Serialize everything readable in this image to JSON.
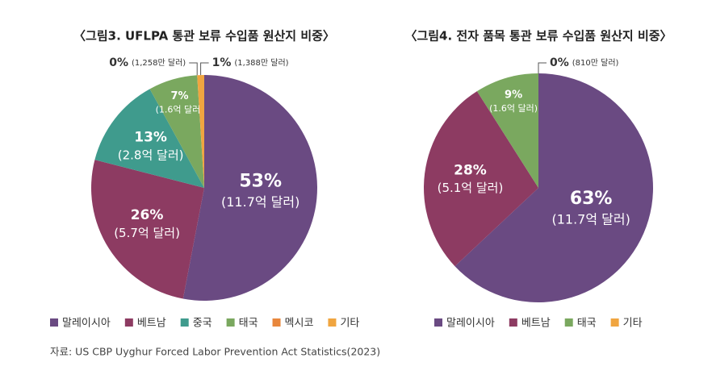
{
  "chart_data": [
    {
      "type": "pie",
      "title": "〈그림3. UFLPA 통관 보류 수입품 원산지 비중〉",
      "categories": [
        "말레이시아",
        "베트남",
        "중국",
        "태국",
        "멕시코",
        "기타"
      ],
      "values": [
        53,
        26,
        13,
        7,
        0,
        1
      ],
      "value_labels": [
        "53%",
        "26%",
        "13%",
        "7%",
        "0%",
        "1%"
      ],
      "amount_labels": [
        "(11.7억 달러)",
        "(5.7억 달러)",
        "(2.8억 달러)",
        "(1.6억 달러)",
        "(1,258만 달러)",
        "(1,388만 달러)"
      ],
      "colors": [
        "#6a4a82",
        "#8d3b62",
        "#3f9b8d",
        "#7aa85f",
        "#e8873d",
        "#f0a540"
      ]
    },
    {
      "type": "pie",
      "title": "〈그림4. 전자 품목 통관 보류 수입품 원산지 비중〉",
      "categories": [
        "말레이시아",
        "베트남",
        "태국",
        "기타"
      ],
      "values": [
        63,
        28,
        9,
        0
      ],
      "value_labels": [
        "63%",
        "28%",
        "9%",
        "0%"
      ],
      "amount_labels": [
        "(11.7억 달러)",
        "(5.1억 달러)",
        "(1.6억 달러)",
        "(810만 달러)"
      ],
      "colors": [
        "#6a4a82",
        "#8d3b62",
        "#7aa85f",
        "#f0a540"
      ]
    }
  ],
  "source": "자료: US CBP Uyghur Forced Labor Prevention Act Statistics(2023)"
}
